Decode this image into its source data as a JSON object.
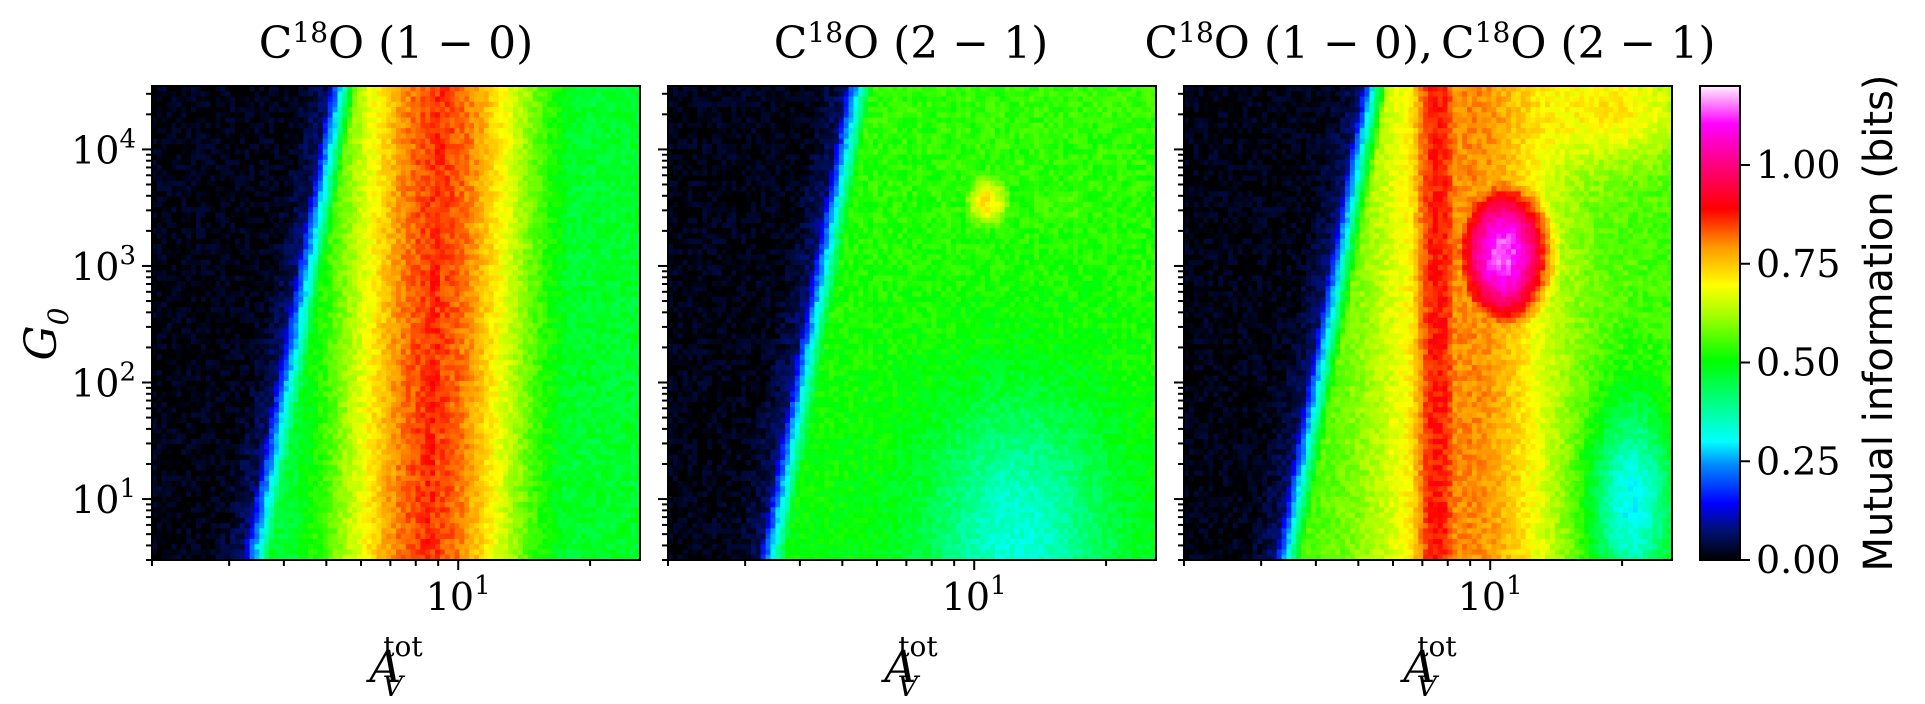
{
  "chart_data": {
    "type": "heatmap",
    "colormap": "gist_ncar",
    "colorbar": {
      "label": "Mutual information (bits)",
      "range": [
        0.0,
        1.2
      ],
      "ticks": [
        "0.00",
        "0.25",
        "0.50",
        "0.75",
        "1.00"
      ],
      "tick_values": [
        0.0,
        0.25,
        0.5,
        0.75,
        1.0
      ]
    },
    "shared_y": {
      "label_main": "G",
      "label_sub": "0",
      "scale": "log",
      "range": [
        3,
        35000
      ],
      "ticks": [
        {
          "value": 10,
          "base": "10",
          "exp": "1"
        },
        {
          "value": 100,
          "base": "10",
          "exp": "2"
        },
        {
          "value": 1000,
          "base": "10",
          "exp": "3"
        },
        {
          "value": 10000,
          "base": "10",
          "exp": "4"
        }
      ]
    },
    "shared_x": {
      "label_main": "A",
      "label_sub": "V",
      "label_sup": "tot",
      "scale": "log",
      "range": [
        2.0,
        26.0
      ],
      "ticks": [
        {
          "value": 10,
          "base": "10",
          "exp": "1"
        }
      ]
    },
    "panels": [
      {
        "title_prefix": "C",
        "title_sup": "18",
        "title_rest": "O (1 − 0)",
        "features": [
          {
            "kind": "ridge",
            "offset": 0.86,
            "width": 0.05,
            "value": 0.32
          },
          {
            "kind": "band",
            "offset_from": 0.9,
            "peak_x": 9.5,
            "value": 0.55
          },
          {
            "kind": "peak",
            "x": 9.0,
            "y": 600,
            "value": 0.85
          },
          {
            "kind": "plateau",
            "x_from": 13,
            "value": 0.47
          }
        ]
      },
      {
        "title_prefix": "C",
        "title_sup": "18",
        "title_rest": "O (2 − 1)",
        "features": [
          {
            "kind": "ridge",
            "offset": 0.86,
            "width": 0.05,
            "value": 0.32
          },
          {
            "kind": "peak",
            "x": 11.0,
            "y": 3500,
            "value": 0.72
          },
          {
            "kind": "plateau",
            "x_from": 8,
            "value": 0.55
          },
          {
            "kind": "trough",
            "x": 12.0,
            "y": 5,
            "value": 0.33
          }
        ]
      },
      {
        "title_prefix": "C",
        "title_sup": "18",
        "title_rest": "O (1 − 0),",
        "title2_prefix": "C",
        "title2_sup": "18",
        "title2_rest": "O (2 − 1)",
        "features": [
          {
            "kind": "ridge",
            "offset": 0.86,
            "width": 0.05,
            "value": 0.32
          },
          {
            "kind": "peak",
            "x": 10.5,
            "y": 1200,
            "value": 1.15
          },
          {
            "kind": "band",
            "x": 8.0,
            "value": 0.9
          },
          {
            "kind": "corner",
            "x": 22,
            "y": 30000,
            "value": 0.8
          },
          {
            "kind": "corner",
            "x": 22,
            "y": 4,
            "value": 0.55
          }
        ]
      }
    ]
  }
}
